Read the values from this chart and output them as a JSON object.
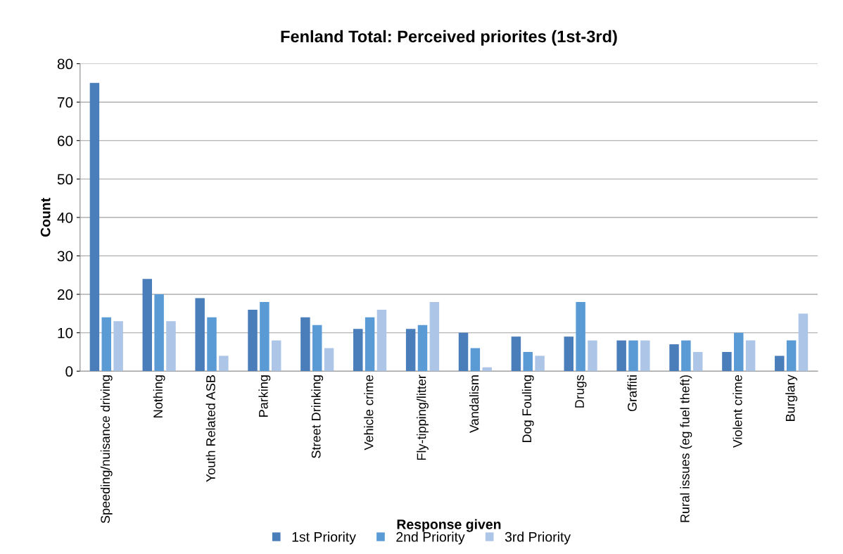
{
  "chart_data": {
    "type": "bar",
    "title": "Fenland Total: Perceived priorites (1st-3rd)",
    "xlabel": "Response given",
    "ylabel": "Count",
    "categories": [
      "Speeding/nuisance driving",
      "Nothing",
      "Youth Related ASB",
      "Parking",
      "Street Drinking",
      "Vehicle crime",
      "Fly-tipping/litter",
      "Vandalism",
      "Dog Fouling",
      "Drugs",
      "Graffiti",
      "Rural issues (eg fuel theft)",
      "Violent crime",
      "Burglary"
    ],
    "series": [
      {
        "name": "1st Priority",
        "color": "#4a7ebb",
        "values": [
          75,
          24,
          19,
          16,
          14,
          11,
          11,
          10,
          9,
          9,
          8,
          7,
          5,
          4
        ]
      },
      {
        "name": "2nd Priority",
        "color": "#5b9bd5",
        "values": [
          14,
          20,
          14,
          18,
          12,
          14,
          12,
          6,
          5,
          18,
          8,
          8,
          10,
          8
        ]
      },
      {
        "name": "3rd Priority",
        "color": "#adc5e7",
        "values": [
          13,
          13,
          4,
          8,
          6,
          16,
          18,
          1,
          4,
          8,
          8,
          5,
          8,
          15
        ]
      }
    ],
    "ylim": [
      0,
      80
    ],
    "yticks": [
      0,
      10,
      20,
      30,
      40,
      50,
      60,
      70,
      80
    ],
    "grid": "y",
    "legend": "bottom"
  }
}
